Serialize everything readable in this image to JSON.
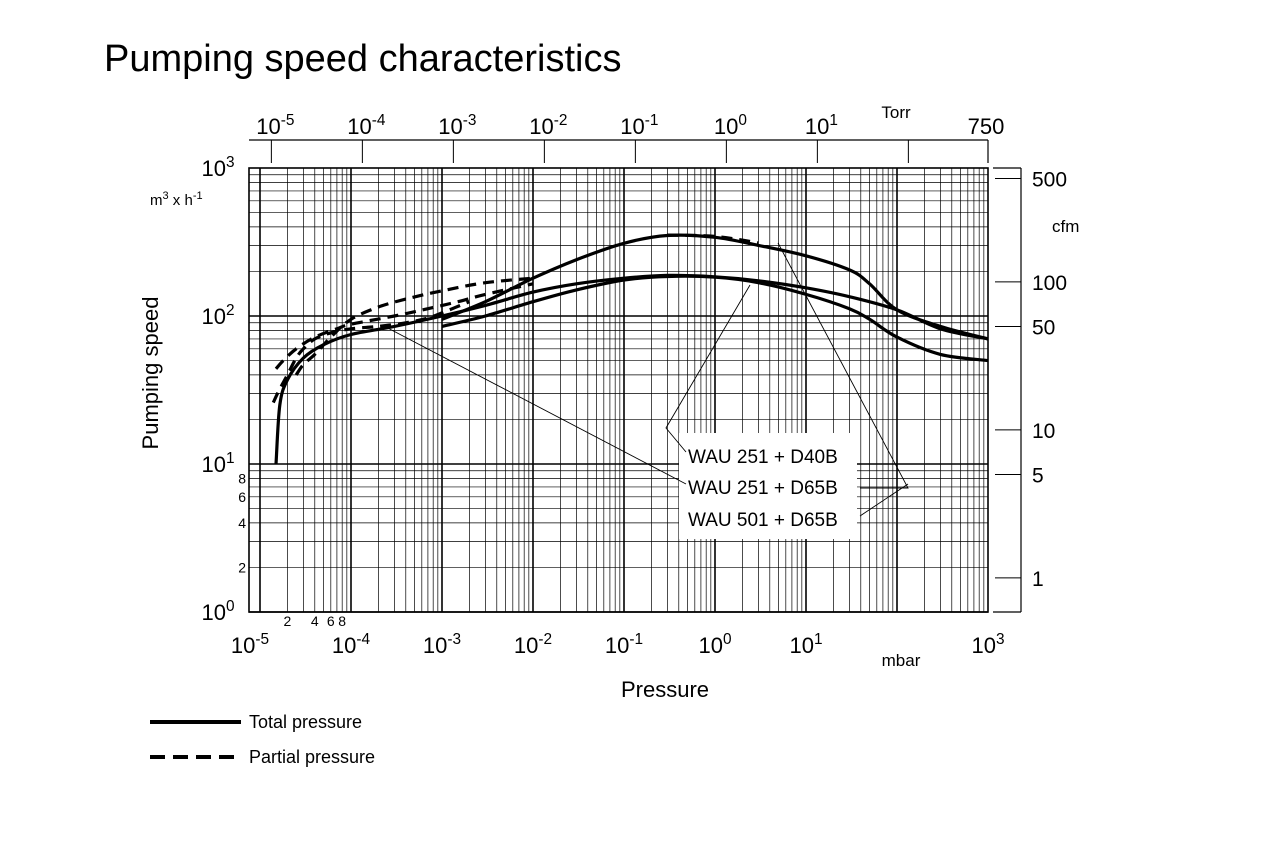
{
  "chart_data": {
    "type": "line",
    "title": "Pumping speed characteristics",
    "xlabel": "Pressure",
    "ylabel": "Pumping speed",
    "x_unit": "mbar",
    "y_unit_prefix": "m",
    "y_unit_exp1": "3",
    "y_unit_mid": " x h",
    "y_unit_exp2": "-1",
    "x_scale": "log",
    "y_scale": "log",
    "xlim": [
      1.1e-05,
      1000
    ],
    "ylim": [
      1,
      1000
    ],
    "grid": true,
    "x_ticks": [
      {
        "value": 1e-05,
        "base": "10",
        "exp": "-5"
      },
      {
        "value": 0.0001,
        "base": "10",
        "exp": "-4"
      },
      {
        "value": 0.001,
        "base": "10",
        "exp": "-3"
      },
      {
        "value": 0.01,
        "base": "10",
        "exp": "-2"
      },
      {
        "value": 0.1,
        "base": "10",
        "exp": "-1"
      },
      {
        "value": 1,
        "base": "10",
        "exp": "0"
      },
      {
        "value": 10,
        "base": "10",
        "exp": "1"
      },
      {
        "value": 1000,
        "base": "10",
        "exp": "3"
      }
    ],
    "x_minor_labels": [
      {
        "value": 2e-05,
        "label": "2"
      },
      {
        "value": 4e-05,
        "label": "4"
      },
      {
        "value": 6e-05,
        "label": "6"
      },
      {
        "value": 8e-05,
        "label": "8"
      }
    ],
    "y_ticks": [
      {
        "value": 1000,
        "base": "10",
        "exp": "3"
      },
      {
        "value": 100,
        "base": "10",
        "exp": "2"
      },
      {
        "value": 10,
        "base": "10",
        "exp": "1"
      },
      {
        "value": 1,
        "base": "10",
        "exp": "0"
      }
    ],
    "y_minor_labels": [
      {
        "value": 8,
        "label": "8"
      },
      {
        "value": 6,
        "label": "6"
      },
      {
        "value": 4,
        "label": "4"
      },
      {
        "value": 2,
        "label": "2"
      }
    ],
    "top_axis": {
      "unit": "Torr",
      "ticks": [
        {
          "value": 1e-05,
          "base": "10",
          "exp": "-5"
        },
        {
          "value": 0.0001,
          "base": "10",
          "exp": "-4"
        },
        {
          "value": 0.001,
          "base": "10",
          "exp": "-3"
        },
        {
          "value": 0.01,
          "base": "10",
          "exp": "-2"
        },
        {
          "value": 0.1,
          "base": "10",
          "exp": "-1"
        },
        {
          "value": 1,
          "base": "10",
          "exp": "0"
        },
        {
          "value": 10,
          "base": "10",
          "exp": "1"
        },
        {
          "value": 750,
          "base": "750",
          "exp": ""
        }
      ],
      "minor_ticks": [
        100
      ]
    },
    "right_axis": {
      "unit": "cfm",
      "ticks": [
        {
          "value": 500,
          "label": "500"
        },
        {
          "value": 100,
          "label": "100"
        },
        {
          "value": 50,
          "label": "50"
        },
        {
          "value": 10,
          "label": "10"
        },
        {
          "value": 5,
          "label": "5"
        },
        {
          "value": 1,
          "label": "1"
        }
      ]
    },
    "legend": {
      "placement": "bottom-left",
      "entries": [
        {
          "style": "solid",
          "label": "Total pressure"
        },
        {
          "style": "dashed",
          "label": "Partial pressure"
        }
      ]
    },
    "annotations": [
      {
        "label": "WAU 251 + D40B"
      },
      {
        "label": "WAU 251 + D65B"
      },
      {
        "label": "WAU 501 + D65B"
      }
    ],
    "series": [
      {
        "style": "solid",
        "points": [
          [
            1.5e-05,
            10
          ],
          [
            1.65e-05,
            25
          ],
          [
            2e-05,
            37
          ],
          [
            3e-05,
            52
          ],
          [
            5e-05,
            64
          ],
          [
            0.0001,
            75
          ],
          [
            0.0003,
            85
          ],
          [
            0.001,
            100
          ],
          [
            0.003,
            118
          ],
          [
            0.01,
            145
          ],
          [
            0.03,
            165
          ],
          [
            0.1,
            180
          ],
          [
            0.3,
            188
          ],
          [
            1,
            184
          ],
          [
            3,
            173
          ],
          [
            10,
            155
          ],
          [
            30,
            135
          ],
          [
            100,
            110
          ],
          [
            300,
            82
          ],
          [
            1000,
            70
          ]
        ]
      },
      {
        "style": "solid",
        "points": [
          [
            0.001,
            85
          ],
          [
            0.003,
            100
          ],
          [
            0.01,
            125
          ],
          [
            0.03,
            150
          ],
          [
            0.1,
            175
          ],
          [
            0.3,
            185
          ],
          [
            1,
            183
          ],
          [
            3,
            168
          ],
          [
            10,
            140
          ],
          [
            30,
            112
          ],
          [
            50,
            95
          ],
          [
            100,
            72
          ],
          [
            300,
            55
          ],
          [
            1000,
            50
          ]
        ]
      },
      {
        "style": "solid",
        "points": [
          [
            0.001,
            95
          ],
          [
            0.003,
            125
          ],
          [
            0.01,
            180
          ],
          [
            0.03,
            240
          ],
          [
            0.1,
            310
          ],
          [
            0.3,
            350
          ],
          [
            1,
            340
          ],
          [
            3,
            300
          ],
          [
            10,
            255
          ],
          [
            30,
            205
          ],
          [
            50,
            165
          ],
          [
            100,
            110
          ],
          [
            300,
            85
          ],
          [
            1000,
            70
          ]
        ]
      },
      {
        "style": "dashed",
        "points": [
          [
            1.4e-05,
            26
          ],
          [
            1.6e-05,
            31
          ],
          [
            2e-05,
            40
          ],
          [
            2.5e-05,
            52
          ],
          [
            3e-05,
            60
          ],
          [
            4e-05,
            70
          ],
          [
            6e-05,
            77
          ],
          [
            0.0001,
            82
          ],
          [
            0.0002,
            85
          ],
          [
            0.0004,
            90
          ],
          [
            0.0007,
            97
          ],
          [
            0.001,
            105
          ],
          [
            0.002,
            125
          ]
        ]
      },
      {
        "style": "dashed",
        "points": [
          [
            1.5e-05,
            44
          ],
          [
            1.8e-05,
            50
          ],
          [
            2.5e-05,
            60
          ],
          [
            4e-05,
            72
          ],
          [
            7e-05,
            82
          ],
          [
            0.0001,
            88
          ],
          [
            0.0003,
            100
          ],
          [
            0.0007,
            112
          ],
          [
            0.0015,
            125
          ],
          [
            0.003,
            140
          ],
          [
            0.01,
            165
          ]
        ]
      },
      {
        "style": "dashed",
        "points": [
          [
            2.5e-05,
            40
          ],
          [
            3e-05,
            47
          ],
          [
            4e-05,
            55
          ],
          [
            6e-05,
            72
          ],
          [
            0.0001,
            95
          ],
          [
            0.0002,
            115
          ],
          [
            0.0004,
            130
          ],
          [
            0.001,
            148
          ],
          [
            0.003,
            168
          ],
          [
            0.01,
            180
          ]
        ]
      },
      {
        "style": "dashed",
        "points": [
          [
            0.3,
            352
          ],
          [
            1,
            345
          ],
          [
            3,
            312
          ]
        ]
      }
    ]
  }
}
